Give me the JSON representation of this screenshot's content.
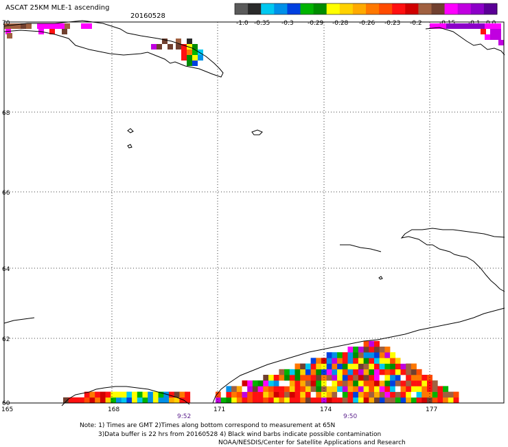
{
  "title": "ASCAT 25KM MLE-1 ascending",
  "date": "20160528",
  "colorbar": {
    "colors": [
      "#5a5a5a",
      "#2a2a2a",
      "#00c8f0",
      "#0090e8",
      "#0040e0",
      "#00b400",
      "#008c00",
      "#ffff00",
      "#ffd200",
      "#ffaa00",
      "#ff7800",
      "#ff4b00",
      "#ff1010",
      "#d00000",
      "#a06040",
      "#704030",
      "#ff00ff",
      "#c000e0",
      "#8c00c8",
      "#5a0096"
    ],
    "labels": [
      "-1.0",
      "-0.35",
      "-0.3",
      "-0.29",
      "-0.28",
      "-0.26",
      "-0.23",
      "-0.2",
      "-0.15",
      "-0.1",
      "0.0"
    ]
  },
  "lat_labels": [
    "70",
    "68",
    "66",
    "64",
    "62",
    "60"
  ],
  "lon_labels": [
    "165",
    "168",
    "171",
    "174",
    "177"
  ],
  "pass_times": [
    "9:52",
    "9:50"
  ],
  "notes": [
    "Note: 1) Times are GMT 2)Times along bottom correspond to measurement at 65N",
    "3)Data buffer is 22 hrs from 20160528 4) Black wind barbs indicate possible contamination",
    "NOAA/NESDIS/Center for Satellite Applications and Research"
  ]
}
